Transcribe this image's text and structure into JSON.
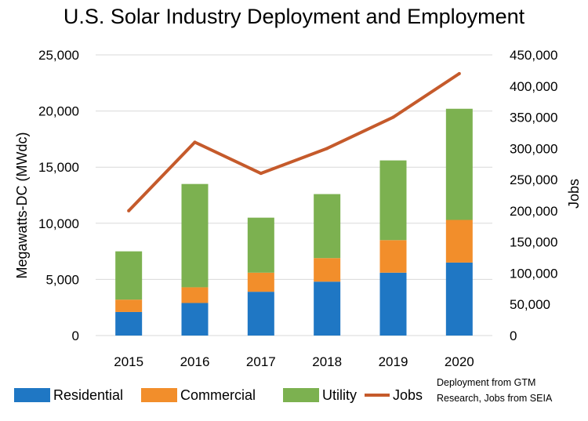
{
  "chart_data": {
    "type": "bar",
    "stacked": true,
    "title": "U.S. Solar Industry Deployment and Employment",
    "ylabel": "Megawatts-DC (MWdc)",
    "y2label": "Jobs",
    "categories": [
      "2015",
      "2016",
      "2017",
      "2018",
      "2019",
      "2020"
    ],
    "ylim": [
      0,
      25000
    ],
    "y2lim": [
      0,
      450000
    ],
    "yticks": [
      "0",
      "5,000",
      "10,000",
      "15,000",
      "20,000",
      "25,000"
    ],
    "y2ticks": [
      "0",
      "50,000",
      "100,000",
      "150,000",
      "200,000",
      "250,000",
      "300,000",
      "350,000",
      "400,000",
      "450,000"
    ],
    "series": [
      {
        "name": "Residential",
        "type": "bar",
        "color": "#1f77c4",
        "values": [
          2100,
          2900,
          3900,
          4800,
          5600,
          6500
        ]
      },
      {
        "name": "Commercial",
        "type": "bar",
        "color": "#f28e2b",
        "values": [
          1100,
          1400,
          1700,
          2100,
          2900,
          3800
        ]
      },
      {
        "name": "Utility",
        "type": "bar",
        "color": "#7cb150",
        "values": [
          4300,
          9200,
          4900,
          5700,
          7100,
          9900
        ]
      },
      {
        "name": "Jobs",
        "type": "line",
        "axis": "right",
        "color": "#c55a2b",
        "values": [
          200000,
          310000,
          260000,
          300000,
          350000,
          420000
        ]
      }
    ],
    "grid": true,
    "legend_position": "bottom",
    "source_note": [
      "Deployment from GTM",
      "Research, Jobs from SEIA"
    ]
  }
}
